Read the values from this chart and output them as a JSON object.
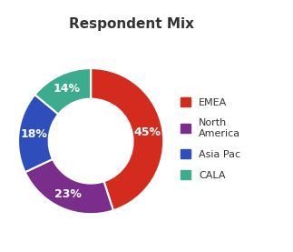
{
  "title": "Respondent Mix",
  "legend_labels": [
    "EMEA",
    "North\nAmerica",
    "Asia Pac",
    "CALA"
  ],
  "values": [
    45,
    23,
    18,
    14
  ],
  "colors": [
    "#d32b1e",
    "#7b2d8b",
    "#2e4ebc",
    "#3dab8e"
  ],
  "pct_labels": [
    "45%",
    "23%",
    "18%",
    "14%"
  ],
  "title_fontsize": 11,
  "pct_fontsize": 9,
  "legend_fontsize": 8,
  "donut_width": 0.42,
  "start_angle": 90,
  "background_color": "#ffffff"
}
